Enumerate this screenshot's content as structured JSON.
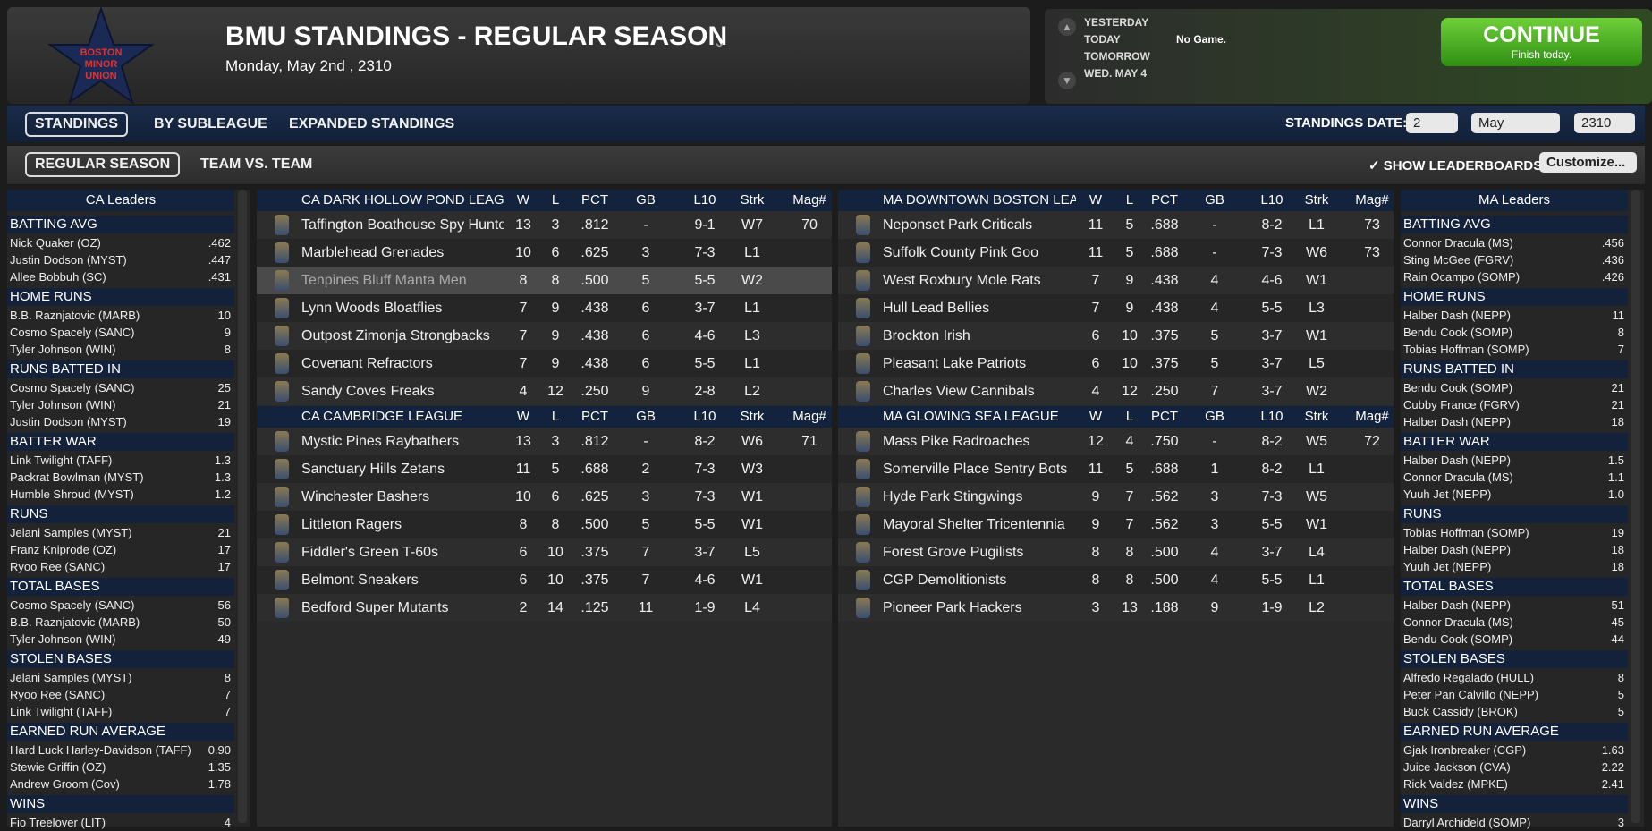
{
  "header": {
    "logo": [
      "BOSTON",
      "MINOR",
      "UNION"
    ],
    "title": "BMU STANDINGS - REGULAR SEASON",
    "date": "Monday, May 2nd , 2310"
  },
  "schedule": {
    "days": [
      "YESTERDAY",
      "TODAY",
      "TOMORROW",
      "WED. MAY 4"
    ],
    "today_game": "No Game."
  },
  "continue": {
    "label": "CONTINUE",
    "sub": "Finish today."
  },
  "tabs": [
    "STANDINGS",
    "BY SUBLEAGUE",
    "EXPANDED STANDINGS"
  ],
  "subtabs": [
    "REGULAR SEASON",
    "TEAM VS. TEAM"
  ],
  "standings_date": {
    "label": "STANDINGS DATE:",
    "day": "2",
    "month": "May",
    "year": "2310"
  },
  "show_leaderboards": "SHOW LEADERBOARDS",
  "customize": "Customize...",
  "columns": [
    "W",
    "L",
    "PCT",
    "GB",
    "L10",
    "Strk",
    "Mag#"
  ],
  "leaders": [
    {
      "title": "CA Leaders",
      "categories": [
        {
          "name": "BATTING AVG",
          "rows": [
            [
              "Nick Quaker (OZ)",
              ".462"
            ],
            [
              "Justin Dodson (MYST)",
              ".447"
            ],
            [
              "Allee Bobbuh (SC)",
              ".431"
            ]
          ]
        },
        {
          "name": "HOME RUNS",
          "rows": [
            [
              "B.B. Raznjatovic (MARB)",
              "10"
            ],
            [
              "Cosmo Spacely (SANC)",
              "9"
            ],
            [
              "Tyler Johnson (WIN)",
              "8"
            ]
          ]
        },
        {
          "name": "RUNS BATTED IN",
          "rows": [
            [
              "Cosmo Spacely (SANC)",
              "25"
            ],
            [
              "Tyler Johnson (WIN)",
              "21"
            ],
            [
              "Justin Dodson (MYST)",
              "19"
            ]
          ]
        },
        {
          "name": "BATTER WAR",
          "rows": [
            [
              "Link Twilight (TAFF)",
              "1.3"
            ],
            [
              "Packrat Bowlman (MYST)",
              "1.3"
            ],
            [
              "Humble Shroud (MYST)",
              "1.2"
            ]
          ]
        },
        {
          "name": "RUNS",
          "rows": [
            [
              "Jelani Samples (MYST)",
              "21"
            ],
            [
              "Franz Kniprode (OZ)",
              "17"
            ],
            [
              "Ryoo Ree (SANC)",
              "17"
            ]
          ]
        },
        {
          "name": "TOTAL BASES",
          "rows": [
            [
              "Cosmo Spacely (SANC)",
              "56"
            ],
            [
              "B.B. Raznjatovic (MARB)",
              "50"
            ],
            [
              "Tyler Johnson (WIN)",
              "49"
            ]
          ]
        },
        {
          "name": "STOLEN BASES",
          "rows": [
            [
              "Jelani Samples (MYST)",
              "8"
            ],
            [
              "Ryoo Ree (SANC)",
              "7"
            ],
            [
              "Link Twilight (TAFF)",
              "7"
            ]
          ]
        },
        {
          "name": "EARNED RUN AVERAGE",
          "rows": [
            [
              "Hard Luck Harley-Davidson (TAFF)",
              "0.90"
            ],
            [
              "Stewie Griffin (OZ)",
              "1.35"
            ],
            [
              "Andrew Groom (Cov)",
              "1.78"
            ]
          ]
        },
        {
          "name": "WINS",
          "rows": [
            [
              "Fio Treelover (LIT)",
              "4"
            ]
          ]
        }
      ]
    },
    {
      "title": "MA Leaders",
      "categories": [
        {
          "name": "BATTING AVG",
          "rows": [
            [
              "Connor Dracula (MS)",
              ".456"
            ],
            [
              "Sting McGee (FGRV)",
              ".436"
            ],
            [
              "Rain Ocampo (SOMP)",
              ".426"
            ]
          ]
        },
        {
          "name": "HOME RUNS",
          "rows": [
            [
              "Halber Dash (NEPP)",
              "11"
            ],
            [
              "Bendu Cook (SOMP)",
              "8"
            ],
            [
              "Tobias Hoffman (SOMP)",
              "7"
            ]
          ]
        },
        {
          "name": "RUNS BATTED IN",
          "rows": [
            [
              "Bendu Cook (SOMP)",
              "21"
            ],
            [
              "Cubby France (FGRV)",
              "21"
            ],
            [
              "Halber Dash (NEPP)",
              "18"
            ]
          ]
        },
        {
          "name": "BATTER WAR",
          "rows": [
            [
              "Halber Dash (NEPP)",
              "1.5"
            ],
            [
              "Connor Dracula (MS)",
              "1.1"
            ],
            [
              "Yuuh Jet (NEPP)",
              "1.0"
            ]
          ]
        },
        {
          "name": "RUNS",
          "rows": [
            [
              "Tobias Hoffman (SOMP)",
              "19"
            ],
            [
              "Halber Dash (NEPP)",
              "18"
            ],
            [
              "Yuuh Jet (NEPP)",
              "18"
            ]
          ]
        },
        {
          "name": "TOTAL BASES",
          "rows": [
            [
              "Halber Dash (NEPP)",
              "51"
            ],
            [
              "Connor Dracula (MS)",
              "45"
            ],
            [
              "Bendu Cook (SOMP)",
              "44"
            ]
          ]
        },
        {
          "name": "STOLEN BASES",
          "rows": [
            [
              "Alfredo Regalado (HULL)",
              "8"
            ],
            [
              "Peter Pan Calvillo (NEPP)",
              "5"
            ],
            [
              "Buck Cassidy (BROK)",
              "5"
            ]
          ]
        },
        {
          "name": "EARNED RUN AVERAGE",
          "rows": [
            [
              "Gjak Ironbreaker (CGP)",
              "1.63"
            ],
            [
              "Juice Jackson (CVA)",
              "2.22"
            ],
            [
              "Rick Valdez (MPKE)",
              "2.41"
            ]
          ]
        },
        {
          "name": "WINS",
          "rows": [
            [
              "Darryl Archideld (SOMP)",
              "3"
            ]
          ]
        }
      ]
    }
  ],
  "divisions": [
    [
      {
        "name": "CA DARK HOLLOW POND LEAGUE",
        "teams": [
          [
            "Taffington Boathouse Spy Hunters",
            "13",
            "3",
            ".812",
            "-",
            "9-1",
            "W7",
            "70"
          ],
          [
            "Marblehead Grenades",
            "10",
            "6",
            ".625",
            "3",
            "7-3",
            "L1",
            null
          ],
          [
            "Tenpines Bluff Manta Men",
            "8",
            "8",
            ".500",
            "5",
            "5-5",
            "W2",
            null
          ],
          [
            "Lynn Woods Bloatflies",
            "7",
            "9",
            ".438",
            "6",
            "3-7",
            "L1",
            null
          ],
          [
            "Outpost Zimonja Strongbacks",
            "7",
            "9",
            ".438",
            "6",
            "4-6",
            "L3",
            null
          ],
          [
            "Covenant Refractors",
            "7",
            "9",
            ".438",
            "6",
            "5-5",
            "L1",
            null
          ],
          [
            "Sandy Coves Freaks",
            "4",
            "12",
            ".250",
            "9",
            "2-8",
            "L2",
            null
          ]
        ]
      },
      {
        "name": "CA CAMBRIDGE LEAGUE",
        "teams": [
          [
            "Mystic Pines Raybathers",
            "13",
            "3",
            ".812",
            "-",
            "8-2",
            "W6",
            "71"
          ],
          [
            "Sanctuary Hills Zetans",
            "11",
            "5",
            ".688",
            "2",
            "7-3",
            "W3",
            null
          ],
          [
            "Winchester Bashers",
            "10",
            "6",
            ".625",
            "3",
            "7-3",
            "W1",
            null
          ],
          [
            "Littleton Ragers",
            "8",
            "8",
            ".500",
            "5",
            "5-5",
            "W1",
            null
          ],
          [
            "Fiddler's Green T-60s",
            "6",
            "10",
            ".375",
            "7",
            "3-7",
            "L5",
            null
          ],
          [
            "Belmont Sneakers",
            "6",
            "10",
            ".375",
            "7",
            "4-6",
            "W1",
            null
          ],
          [
            "Bedford Super Mutants",
            "2",
            "14",
            ".125",
            "11",
            "1-9",
            "L4",
            null
          ]
        ]
      }
    ],
    [
      {
        "name": "MA DOWNTOWN BOSTON LEAGUE",
        "teams": [
          [
            "Neponset Park Criticals",
            "11",
            "5",
            ".688",
            "-",
            "8-2",
            "L1",
            "73"
          ],
          [
            "Suffolk County Pink Goo",
            "11",
            "5",
            ".688",
            "-",
            "7-3",
            "W6",
            "73"
          ],
          [
            "West Roxbury Mole Rats",
            "7",
            "9",
            ".438",
            "4",
            "4-6",
            "W1",
            null
          ],
          [
            "Hull Lead Bellies",
            "7",
            "9",
            ".438",
            "4",
            "5-5",
            "L3",
            null
          ],
          [
            "Brockton Irish",
            "6",
            "10",
            ".375",
            "5",
            "3-7",
            "W1",
            null
          ],
          [
            "Pleasant Lake Patriots",
            "6",
            "10",
            ".375",
            "5",
            "3-7",
            "L5",
            null
          ],
          [
            "Charles View Cannibals",
            "4",
            "12",
            ".250",
            "7",
            "3-7",
            "W2",
            null
          ]
        ]
      },
      {
        "name": "MA GLOWING SEA LEAGUE",
        "teams": [
          [
            "Mass Pike Radroaches",
            "12",
            "4",
            ".750",
            "-",
            "8-2",
            "W5",
            "72"
          ],
          [
            "Somerville Place Sentry Bots",
            "11",
            "5",
            ".688",
            "1",
            "8-2",
            "L1",
            null
          ],
          [
            "Hyde Park Stingwings",
            "9",
            "7",
            ".562",
            "3",
            "7-3",
            "W5",
            null
          ],
          [
            "Mayoral Shelter Tricentennia",
            "9",
            "7",
            ".562",
            "3",
            "5-5",
            "W1",
            null
          ],
          [
            "Forest Grove Pugilists",
            "8",
            "8",
            ".500",
            "4",
            "3-7",
            "L4",
            null
          ],
          [
            "CGP Demolitionists",
            "8",
            "8",
            ".500",
            "4",
            "5-5",
            "L1",
            null
          ],
          [
            "Pioneer Park Hackers",
            "3",
            "13",
            ".188",
            "9",
            "1-9",
            "L2",
            null
          ]
        ]
      }
    ]
  ]
}
